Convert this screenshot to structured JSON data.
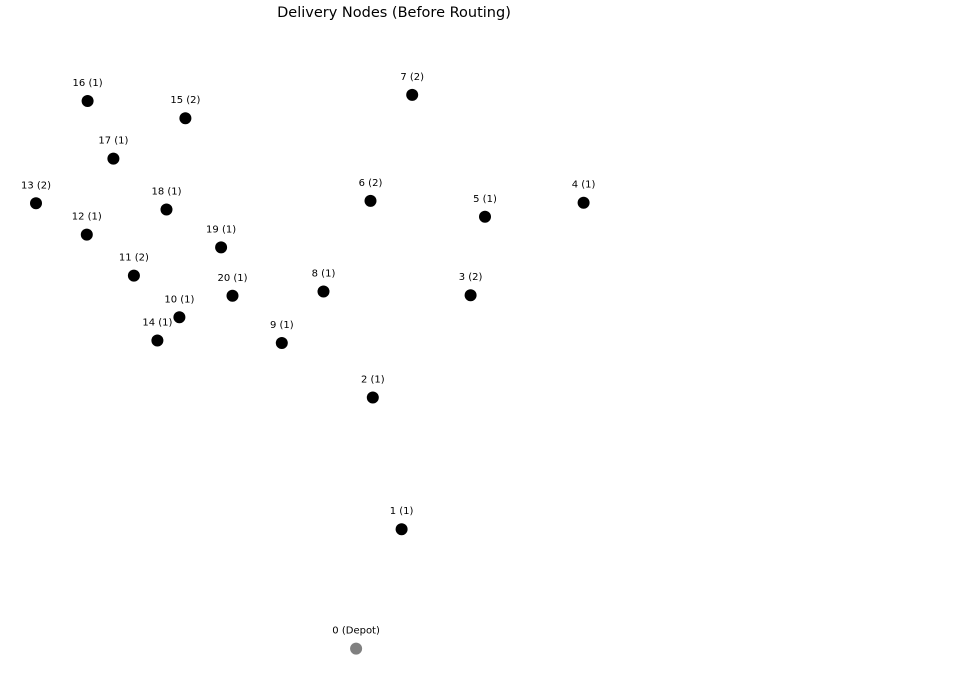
{
  "colors": {
    "node": "#000000",
    "depot": "#808080",
    "background": "#ffffff"
  },
  "chart_data": {
    "type": "scatter",
    "title": "Delivery Nodes (Before Routing)",
    "xlabel": "",
    "ylabel": "",
    "grid": false,
    "axes_visible": false,
    "xlim": [
      -3,
      98
    ],
    "ylim": [
      -3,
      101
    ],
    "points": [
      {
        "id": 0,
        "label": "0 (Depot)",
        "x": 42.5,
        "y": 0.0,
        "demand": 0,
        "depot": true
      },
      {
        "id": 1,
        "label": "1 (1)",
        "x": 48.5,
        "y": 19.5,
        "demand": 1
      },
      {
        "id": 2,
        "label": "2 (1)",
        "x": 44.7,
        "y": 41.0,
        "demand": 1
      },
      {
        "id": 3,
        "label": "3 (2)",
        "x": 57.6,
        "y": 57.7,
        "demand": 2
      },
      {
        "id": 4,
        "label": "4 (1)",
        "x": 72.5,
        "y": 72.8,
        "demand": 1
      },
      {
        "id": 5,
        "label": "5 (1)",
        "x": 59.5,
        "y": 70.5,
        "demand": 1
      },
      {
        "id": 6,
        "label": "6 (2)",
        "x": 44.4,
        "y": 73.1,
        "demand": 2
      },
      {
        "id": 7,
        "label": "7 (2)",
        "x": 49.9,
        "y": 90.4,
        "demand": 2
      },
      {
        "id": 8,
        "label": "8 (1)",
        "x": 38.2,
        "y": 58.3,
        "demand": 1
      },
      {
        "id": 9,
        "label": "9 (1)",
        "x": 32.7,
        "y": 49.9,
        "demand": 1
      },
      {
        "id": 10,
        "label": "10 (1)",
        "x": 19.2,
        "y": 54.1,
        "demand": 1
      },
      {
        "id": 11,
        "label": "11 (2)",
        "x": 13.2,
        "y": 60.9,
        "demand": 2
      },
      {
        "id": 12,
        "label": "12 (1)",
        "x": 7.0,
        "y": 67.6,
        "demand": 1
      },
      {
        "id": 13,
        "label": "13 (2)",
        "x": 0.3,
        "y": 72.7,
        "demand": 2
      },
      {
        "id": 14,
        "label": "14 (1)",
        "x": 16.3,
        "y": 50.3,
        "demand": 1
      },
      {
        "id": 15,
        "label": "15 (2)",
        "x": 20.0,
        "y": 86.6,
        "demand": 2
      },
      {
        "id": 16,
        "label": "16 (1)",
        "x": 7.1,
        "y": 89.4,
        "demand": 1
      },
      {
        "id": 17,
        "label": "17 (1)",
        "x": 10.5,
        "y": 80.0,
        "demand": 1
      },
      {
        "id": 18,
        "label": "18 (1)",
        "x": 17.5,
        "y": 71.7,
        "demand": 1
      },
      {
        "id": 19,
        "label": "19 (1)",
        "x": 24.7,
        "y": 65.5,
        "demand": 1
      },
      {
        "id": 20,
        "label": "20 (1)",
        "x": 26.2,
        "y": 57.6,
        "demand": 1
      }
    ]
  }
}
